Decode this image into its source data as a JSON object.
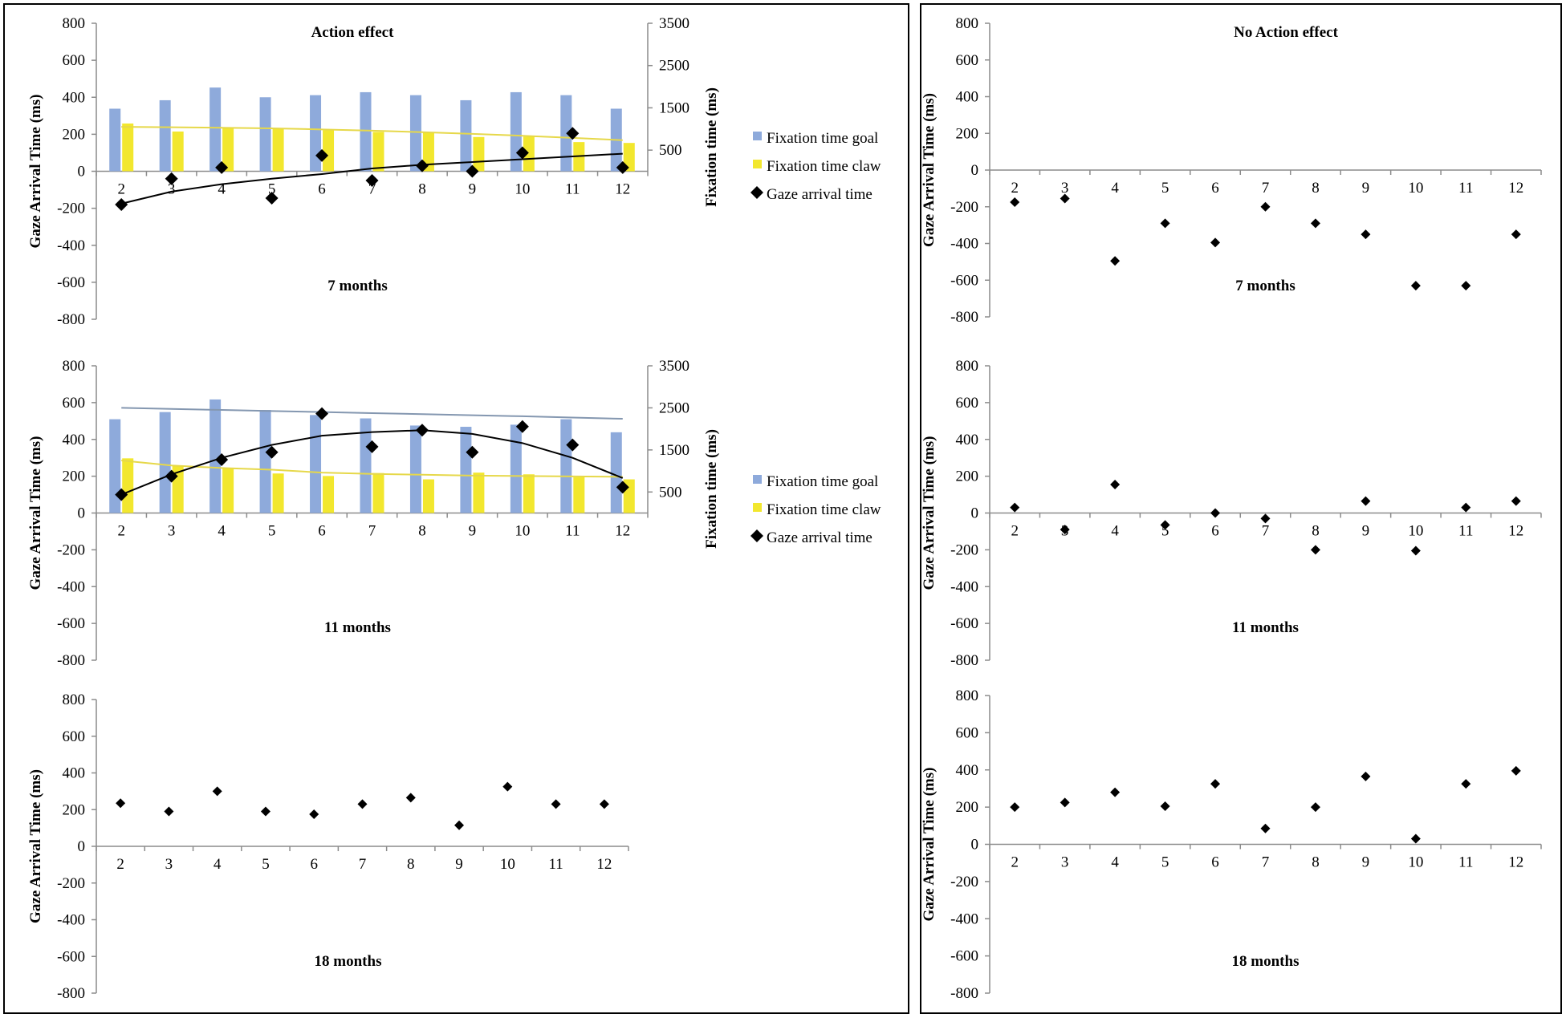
{
  "colors": {
    "goal": "#8eaadb",
    "claw": "#f2e72e",
    "gaze": "#000000",
    "goal_line": "#8497b0",
    "claw_line": "#e6d84a"
  },
  "panels": {
    "action_title": "Action effect",
    "no_action_title": "No Action effect"
  },
  "legend": {
    "goal": "Fixation time goal",
    "claw": "Fixation time claw",
    "gaze": "Gaze arrival time"
  },
  "chart_data": [
    {
      "id": "action-7",
      "type": "bar+scatter",
      "title": "Action effect",
      "age_label": "7 months",
      "ylabel": "Gaze Arrival Time (ms)",
      "y2label": "Fixation time (ms)",
      "ylim": [
        -800,
        800
      ],
      "yticks": [
        800,
        600,
        400,
        200,
        0,
        -200,
        -400,
        -600,
        -800
      ],
      "y2lim": [
        0,
        3500
      ],
      "y2ticks": [
        3500,
        2500,
        1500,
        500
      ],
      "categories": [
        "2",
        "3",
        "4",
        "5",
        "6",
        "7",
        "8",
        "9",
        "10",
        "11",
        "12"
      ],
      "series": [
        {
          "name": "Fixation time goal",
          "kind": "bar",
          "axis": "right",
          "values": [
            1480,
            1680,
            1980,
            1750,
            1800,
            1870,
            1800,
            1680,
            1870,
            1800,
            1480
          ]
        },
        {
          "name": "Fixation time claw",
          "kind": "bar",
          "axis": "right",
          "values": [
            1130,
            940,
            1020,
            1020,
            970,
            930,
            930,
            810,
            820,
            690,
            670
          ]
        },
        {
          "name": "Gaze arrival time",
          "kind": "scatter",
          "axis": "left",
          "values": [
            -180,
            -40,
            20,
            -145,
            85,
            -50,
            30,
            0,
            100,
            205,
            20
          ]
        }
      ],
      "trend_claw": [
        1050,
        1040,
        1030,
        1015,
        990,
        960,
        925,
        885,
        840,
        790,
        735
      ],
      "trend_gaze": [
        -175,
        -110,
        -70,
        -40,
        -15,
        15,
        35,
        50,
        65,
        80,
        95
      ]
    },
    {
      "id": "action-11",
      "type": "bar+scatter",
      "age_label": "11 months",
      "ylabel": "Gaze Arrival Time (ms)",
      "y2label": "Fixation time (ms)",
      "ylim": [
        -800,
        800
      ],
      "yticks": [
        800,
        600,
        400,
        200,
        0,
        -200,
        -400,
        -600,
        -800
      ],
      "y2lim": [
        0,
        3500
      ],
      "y2ticks": [
        3500,
        2500,
        1500,
        500
      ],
      "categories": [
        "2",
        "3",
        "4",
        "5",
        "6",
        "7",
        "8",
        "9",
        "10",
        "11",
        "12"
      ],
      "series": [
        {
          "name": "Fixation time goal",
          "kind": "bar",
          "axis": "right",
          "values": [
            2230,
            2400,
            2700,
            2450,
            2330,
            2250,
            2080,
            2050,
            2100,
            2230,
            1920
          ]
        },
        {
          "name": "Fixation time claw",
          "kind": "bar",
          "axis": "right",
          "values": [
            1300,
            1130,
            1060,
            940,
            880,
            950,
            800,
            960,
            920,
            850,
            800
          ]
        },
        {
          "name": "Gaze arrival time",
          "kind": "scatter",
          "axis": "left",
          "values": [
            100,
            200,
            290,
            330,
            540,
            360,
            450,
            330,
            470,
            370,
            140
          ]
        }
      ],
      "trend_goal": [
        2500,
        2475,
        2450,
        2425,
        2400,
        2375,
        2350,
        2325,
        2300,
        2270,
        2240
      ],
      "trend_claw": [
        1250,
        1130,
        1070,
        1030,
        960,
        930,
        910,
        890,
        880,
        870,
        860
      ],
      "trend_gaze": [
        100,
        210,
        300,
        370,
        420,
        440,
        450,
        430,
        380,
        300,
        190
      ]
    },
    {
      "id": "action-18",
      "type": "scatter",
      "age_label": "18 months",
      "ylabel": "Gaze Arrival Time (ms)",
      "ylim": [
        -800,
        800
      ],
      "yticks": [
        800,
        600,
        400,
        200,
        0,
        -200,
        -400,
        -600,
        -800
      ],
      "categories": [
        "2",
        "3",
        "4",
        "5",
        "6",
        "7",
        "8",
        "9",
        "10",
        "11",
        "12"
      ],
      "series": [
        {
          "name": "Gaze arrival time",
          "kind": "scatter",
          "axis": "left",
          "values": [
            235,
            190,
            300,
            190,
            175,
            230,
            265,
            115,
            325,
            230,
            230
          ]
        }
      ]
    },
    {
      "id": "noaction-7",
      "type": "scatter",
      "title": "No Action effect",
      "age_label": "7 months",
      "ylabel": "Gaze Arrival Time (ms)",
      "ylim": [
        -800,
        800
      ],
      "yticks": [
        800,
        600,
        400,
        200,
        0,
        -200,
        -400,
        -600,
        -800
      ],
      "categories": [
        "2",
        "3",
        "4",
        "5",
        "6",
        "7",
        "8",
        "9",
        "10",
        "11",
        "12"
      ],
      "series": [
        {
          "name": "Gaze arrival time",
          "kind": "scatter",
          "axis": "left",
          "values": [
            -175,
            -155,
            -495,
            -290,
            -395,
            -200,
            -290,
            -350,
            -630,
            -630,
            -350
          ]
        }
      ]
    },
    {
      "id": "noaction-11",
      "type": "scatter",
      "age_label": "11 months",
      "ylabel": "Gaze Arrival Time (ms)",
      "ylim": [
        -800,
        800
      ],
      "yticks": [
        800,
        600,
        400,
        200,
        0,
        -200,
        -400,
        -600,
        -800
      ],
      "categories": [
        "2",
        "3",
        "4",
        "5",
        "6",
        "7",
        "8",
        "9",
        "10",
        "11",
        "12"
      ],
      "series": [
        {
          "name": "Gaze arrival time",
          "kind": "scatter",
          "axis": "left",
          "values": [
            30,
            -90,
            155,
            -65,
            0,
            -30,
            -200,
            65,
            -205,
            30,
            65
          ]
        }
      ]
    },
    {
      "id": "noaction-18",
      "type": "scatter",
      "age_label": "18 months",
      "ylabel": "Gaze Arrival Time (ms)",
      "ylim": [
        -800,
        800
      ],
      "yticks": [
        800,
        600,
        400,
        200,
        0,
        -200,
        -400,
        -600,
        -800
      ],
      "categories": [
        "2",
        "3",
        "4",
        "5",
        "6",
        "7",
        "8",
        "9",
        "10",
        "11",
        "12"
      ],
      "series": [
        {
          "name": "Gaze arrival time",
          "kind": "scatter",
          "axis": "left",
          "values": [
            200,
            225,
            280,
            205,
            325,
            85,
            200,
            365,
            30,
            325,
            395
          ]
        }
      ]
    }
  ]
}
